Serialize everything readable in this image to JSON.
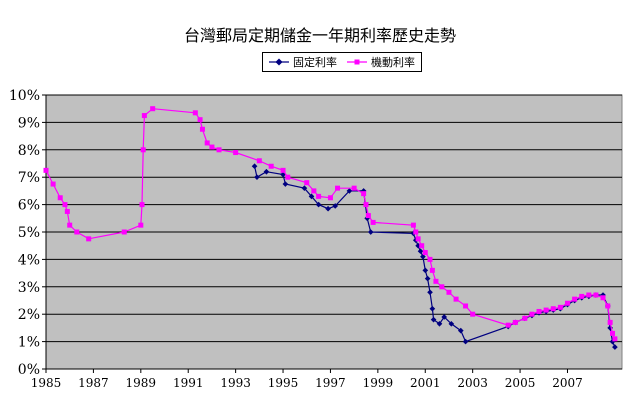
{
  "chart_data": {
    "type": "line",
    "title": "台灣郵局定期儲金一年期利率歷史走勢",
    "xlabel": "",
    "ylabel": "",
    "xlim": [
      1985,
      2009.3
    ],
    "ylim": [
      0,
      10
    ],
    "x_ticks": [
      "1985",
      "1987",
      "1989",
      "1991",
      "1993",
      "1995",
      "1997",
      "1999",
      "2001",
      "2003",
      "2005",
      "2007"
    ],
    "y_ticks": [
      "0%",
      "1%",
      "2%",
      "3%",
      "4%",
      "5%",
      "6%",
      "7%",
      "8%",
      "9%",
      "10%"
    ],
    "grid": "horizontal",
    "legend_position": "top-center",
    "plot_background": "#c0c0c0",
    "series": [
      {
        "name": "固定利率",
        "color": "#000080",
        "marker": "diamond",
        "points": [
          [
            1993.8,
            7.4
          ],
          [
            1993.9,
            7.0
          ],
          [
            1994.3,
            7.2
          ],
          [
            1995.0,
            7.1
          ],
          [
            1995.1,
            6.75
          ],
          [
            1995.9,
            6.6
          ],
          [
            1996.2,
            6.3
          ],
          [
            1996.5,
            6.0
          ],
          [
            1996.9,
            5.85
          ],
          [
            1997.2,
            5.95
          ],
          [
            1997.8,
            6.5
          ],
          [
            1998.4,
            6.5
          ],
          [
            1998.55,
            5.5
          ],
          [
            1998.7,
            5.0
          ],
          [
            2000.5,
            4.95
          ],
          [
            2000.6,
            4.7
          ],
          [
            2000.7,
            4.5
          ],
          [
            2000.8,
            4.3
          ],
          [
            2000.9,
            4.1
          ],
          [
            2001.0,
            3.6
          ],
          [
            2001.1,
            3.3
          ],
          [
            2001.2,
            2.8
          ],
          [
            2001.3,
            2.2
          ],
          [
            2001.35,
            1.8
          ],
          [
            2001.6,
            1.65
          ],
          [
            2001.8,
            1.9
          ],
          [
            2002.1,
            1.65
          ],
          [
            2002.5,
            1.4
          ],
          [
            2002.7,
            1.0
          ],
          [
            2004.5,
            1.55
          ],
          [
            2004.8,
            1.7
          ],
          [
            2005.2,
            1.85
          ],
          [
            2005.5,
            1.95
          ],
          [
            2005.8,
            2.05
          ],
          [
            2006.1,
            2.1
          ],
          [
            2006.4,
            2.15
          ],
          [
            2006.7,
            2.2
          ],
          [
            2007.0,
            2.35
          ],
          [
            2007.3,
            2.5
          ],
          [
            2007.6,
            2.6
          ],
          [
            2007.9,
            2.65
          ],
          [
            2008.2,
            2.7
          ],
          [
            2008.5,
            2.7
          ],
          [
            2008.7,
            2.3
          ],
          [
            2008.8,
            1.5
          ],
          [
            2008.9,
            1.0
          ],
          [
            2009.0,
            0.8
          ]
        ]
      },
      {
        "name": "機動利率",
        "color": "#ff00ff",
        "marker": "square",
        "points": [
          [
            1985.0,
            7.25
          ],
          [
            1985.3,
            6.75
          ],
          [
            1985.6,
            6.25
          ],
          [
            1985.8,
            6.0
          ],
          [
            1985.9,
            5.75
          ],
          [
            1986.0,
            5.25
          ],
          [
            1986.3,
            5.0
          ],
          [
            1986.8,
            4.75
          ],
          [
            1988.3,
            5.0
          ],
          [
            1989.0,
            5.25
          ],
          [
            1989.05,
            6.0
          ],
          [
            1989.1,
            8.0
          ],
          [
            1989.15,
            9.25
          ],
          [
            1989.5,
            9.5
          ],
          [
            1991.3,
            9.35
          ],
          [
            1991.5,
            9.1
          ],
          [
            1991.6,
            8.75
          ],
          [
            1991.8,
            8.25
          ],
          [
            1992.0,
            8.1
          ],
          [
            1992.3,
            8.0
          ],
          [
            1993.0,
            7.9
          ],
          [
            1994.0,
            7.6
          ],
          [
            1994.5,
            7.4
          ],
          [
            1995.0,
            7.25
          ],
          [
            1995.2,
            7.0
          ],
          [
            1996.0,
            6.8
          ],
          [
            1996.3,
            6.5
          ],
          [
            1996.5,
            6.3
          ],
          [
            1997.0,
            6.25
          ],
          [
            1997.3,
            6.6
          ],
          [
            1998.0,
            6.6
          ],
          [
            1998.4,
            6.4
          ],
          [
            1998.5,
            6.0
          ],
          [
            1998.6,
            5.6
          ],
          [
            1998.8,
            5.35
          ],
          [
            2000.5,
            5.25
          ],
          [
            2000.6,
            5.0
          ],
          [
            2000.7,
            4.75
          ],
          [
            2000.85,
            4.5
          ],
          [
            2001.0,
            4.25
          ],
          [
            2001.2,
            4.0
          ],
          [
            2001.3,
            3.6
          ],
          [
            2001.45,
            3.2
          ],
          [
            2001.7,
            3.0
          ],
          [
            2002.0,
            2.8
          ],
          [
            2002.3,
            2.55
          ],
          [
            2002.7,
            2.3
          ],
          [
            2003.0,
            2.0
          ],
          [
            2004.5,
            1.6
          ],
          [
            2004.8,
            1.7
          ],
          [
            2005.2,
            1.85
          ],
          [
            2005.5,
            2.0
          ],
          [
            2005.8,
            2.1
          ],
          [
            2006.1,
            2.15
          ],
          [
            2006.4,
            2.2
          ],
          [
            2006.7,
            2.25
          ],
          [
            2007.0,
            2.4
          ],
          [
            2007.3,
            2.55
          ],
          [
            2007.6,
            2.65
          ],
          [
            2007.9,
            2.7
          ],
          [
            2008.2,
            2.7
          ],
          [
            2008.5,
            2.6
          ],
          [
            2008.7,
            2.3
          ],
          [
            2008.8,
            1.7
          ],
          [
            2008.9,
            1.3
          ],
          [
            2009.0,
            1.1
          ]
        ]
      }
    ]
  }
}
